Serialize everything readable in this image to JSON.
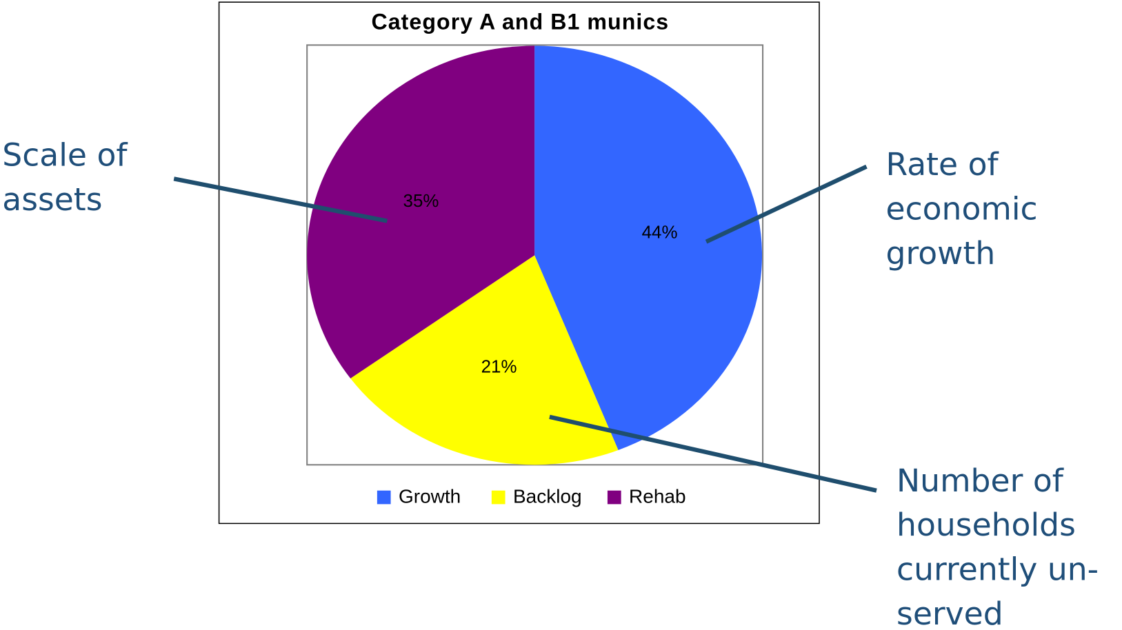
{
  "chart_data": {
    "type": "pie",
    "title": "Category A and B1 munics",
    "categories": [
      "Growth",
      "Backlog",
      "Rehab"
    ],
    "values": [
      44,
      21,
      35
    ],
    "value_labels": [
      "44%",
      "21%",
      "35%"
    ],
    "colors": [
      "#3366ff",
      "#ffff00",
      "#800080"
    ],
    "legend": "bottom",
    "annotations": [
      {
        "lines": [
          "Scale of",
          "assets"
        ]
      },
      {
        "lines": [
          "Rate of",
          "economic",
          "growth"
        ]
      },
      {
        "lines": [
          "Number of",
          "households",
          "currently un-",
          "served"
        ]
      }
    ]
  }
}
